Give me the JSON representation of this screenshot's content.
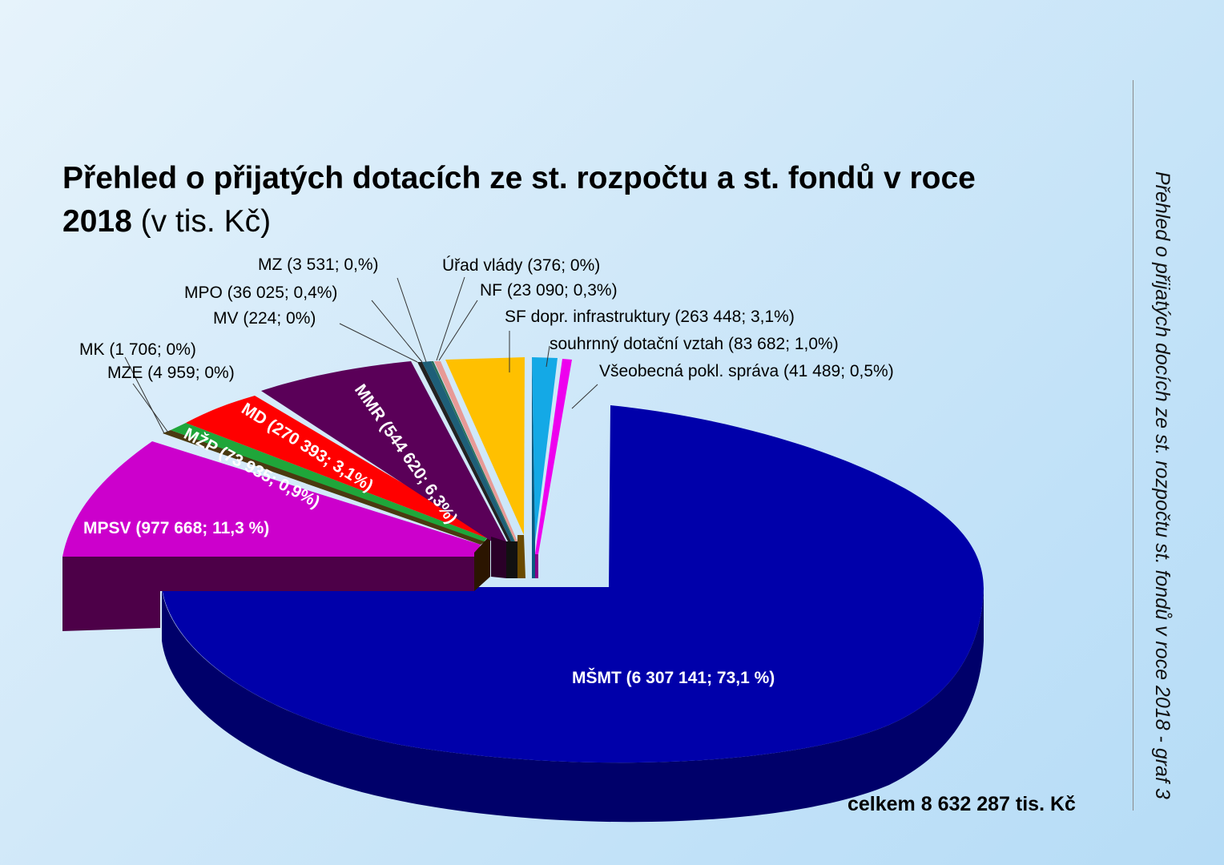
{
  "title_bold": "Přehled o přijatých dotacích ze st. rozpočtu a st. fondů v roce 2018",
  "title_normal": "(v tis. Kč)",
  "side_caption": "Přehled o přijatých docích ze st. rozpočtu st. fondů v roce 2018 - graf 3",
  "total_label": "celkem 8 632 287 tis. Kč",
  "chart_data": {
    "type": "pie",
    "style": "3d exploded",
    "unit": "tis. Kč",
    "total": 8632287,
    "series": [
      {
        "name": "MŠMT",
        "value": 6307141,
        "percent": 73.1,
        "color": "#0000aa",
        "label": "MŠMT (6 307 141; 73,1 %)"
      },
      {
        "name": "MPSV",
        "value": 977668,
        "percent": 11.3,
        "color": "#cc00cc",
        "label": "MPSV (977 668; 11,3 %)"
      },
      {
        "name": "MK",
        "value": 1706,
        "percent": 0,
        "color": "#3b2a14",
        "label": "MK (1 706; 0%)"
      },
      {
        "name": "MZE",
        "value": 4959,
        "percent": 0,
        "color": "#4a3a10",
        "label": "MZE (4 959; 0%)"
      },
      {
        "name": "MŽP",
        "value": 73935,
        "percent": 0.9,
        "color": "#1fa63a",
        "label": "MŽP (73 935; 0,9%)"
      },
      {
        "name": "MD",
        "value": 270393,
        "percent": 3.1,
        "color": "#ff0000",
        "label": "MD (270 393; 3,1%)"
      },
      {
        "name": "MMR",
        "value": 544620,
        "percent": 6.3,
        "color": "#5a0058",
        "label": "MMR (544 620; 6,3%)"
      },
      {
        "name": "MV",
        "value": 224,
        "percent": 0,
        "color": "#333333",
        "label": "MV (224; 0%)"
      },
      {
        "name": "MPO",
        "value": 36025,
        "percent": 0.4,
        "color": "#1e5f78",
        "label": "MPO (36 025; 0,4%)"
      },
      {
        "name": "MZ",
        "value": 3531,
        "percent": 0,
        "color": "#2a6f5a",
        "label": "MZ (3 531; 0,%)"
      },
      {
        "name": "Úřad vlády",
        "value": 376,
        "percent": 0,
        "color": "#888888",
        "label": "Úřad vlády (376; 0%)"
      },
      {
        "name": "NF",
        "value": 23090,
        "percent": 0.3,
        "color": "#e79a96",
        "label": "NF (23 090; 0,3%)"
      },
      {
        "name": "SF dopr. infrastruktury",
        "value": 263448,
        "percent": 3.1,
        "color": "#ffc000",
        "label": "SF dopr. infrastruktury (263 448; 3,1%)"
      },
      {
        "name": "souhrnný dotační vztah",
        "value": 83682,
        "percent": 1.0,
        "color": "#14a9e6",
        "label": "souhrnný dotační vztah (83 682; 1,0%)"
      },
      {
        "name": "Všeobecná pokl. správa",
        "value": 41489,
        "percent": 0.5,
        "color": "#ee00ee",
        "label": "Všeobecná pokl. správa (41 489; 0,5%)"
      }
    ]
  }
}
